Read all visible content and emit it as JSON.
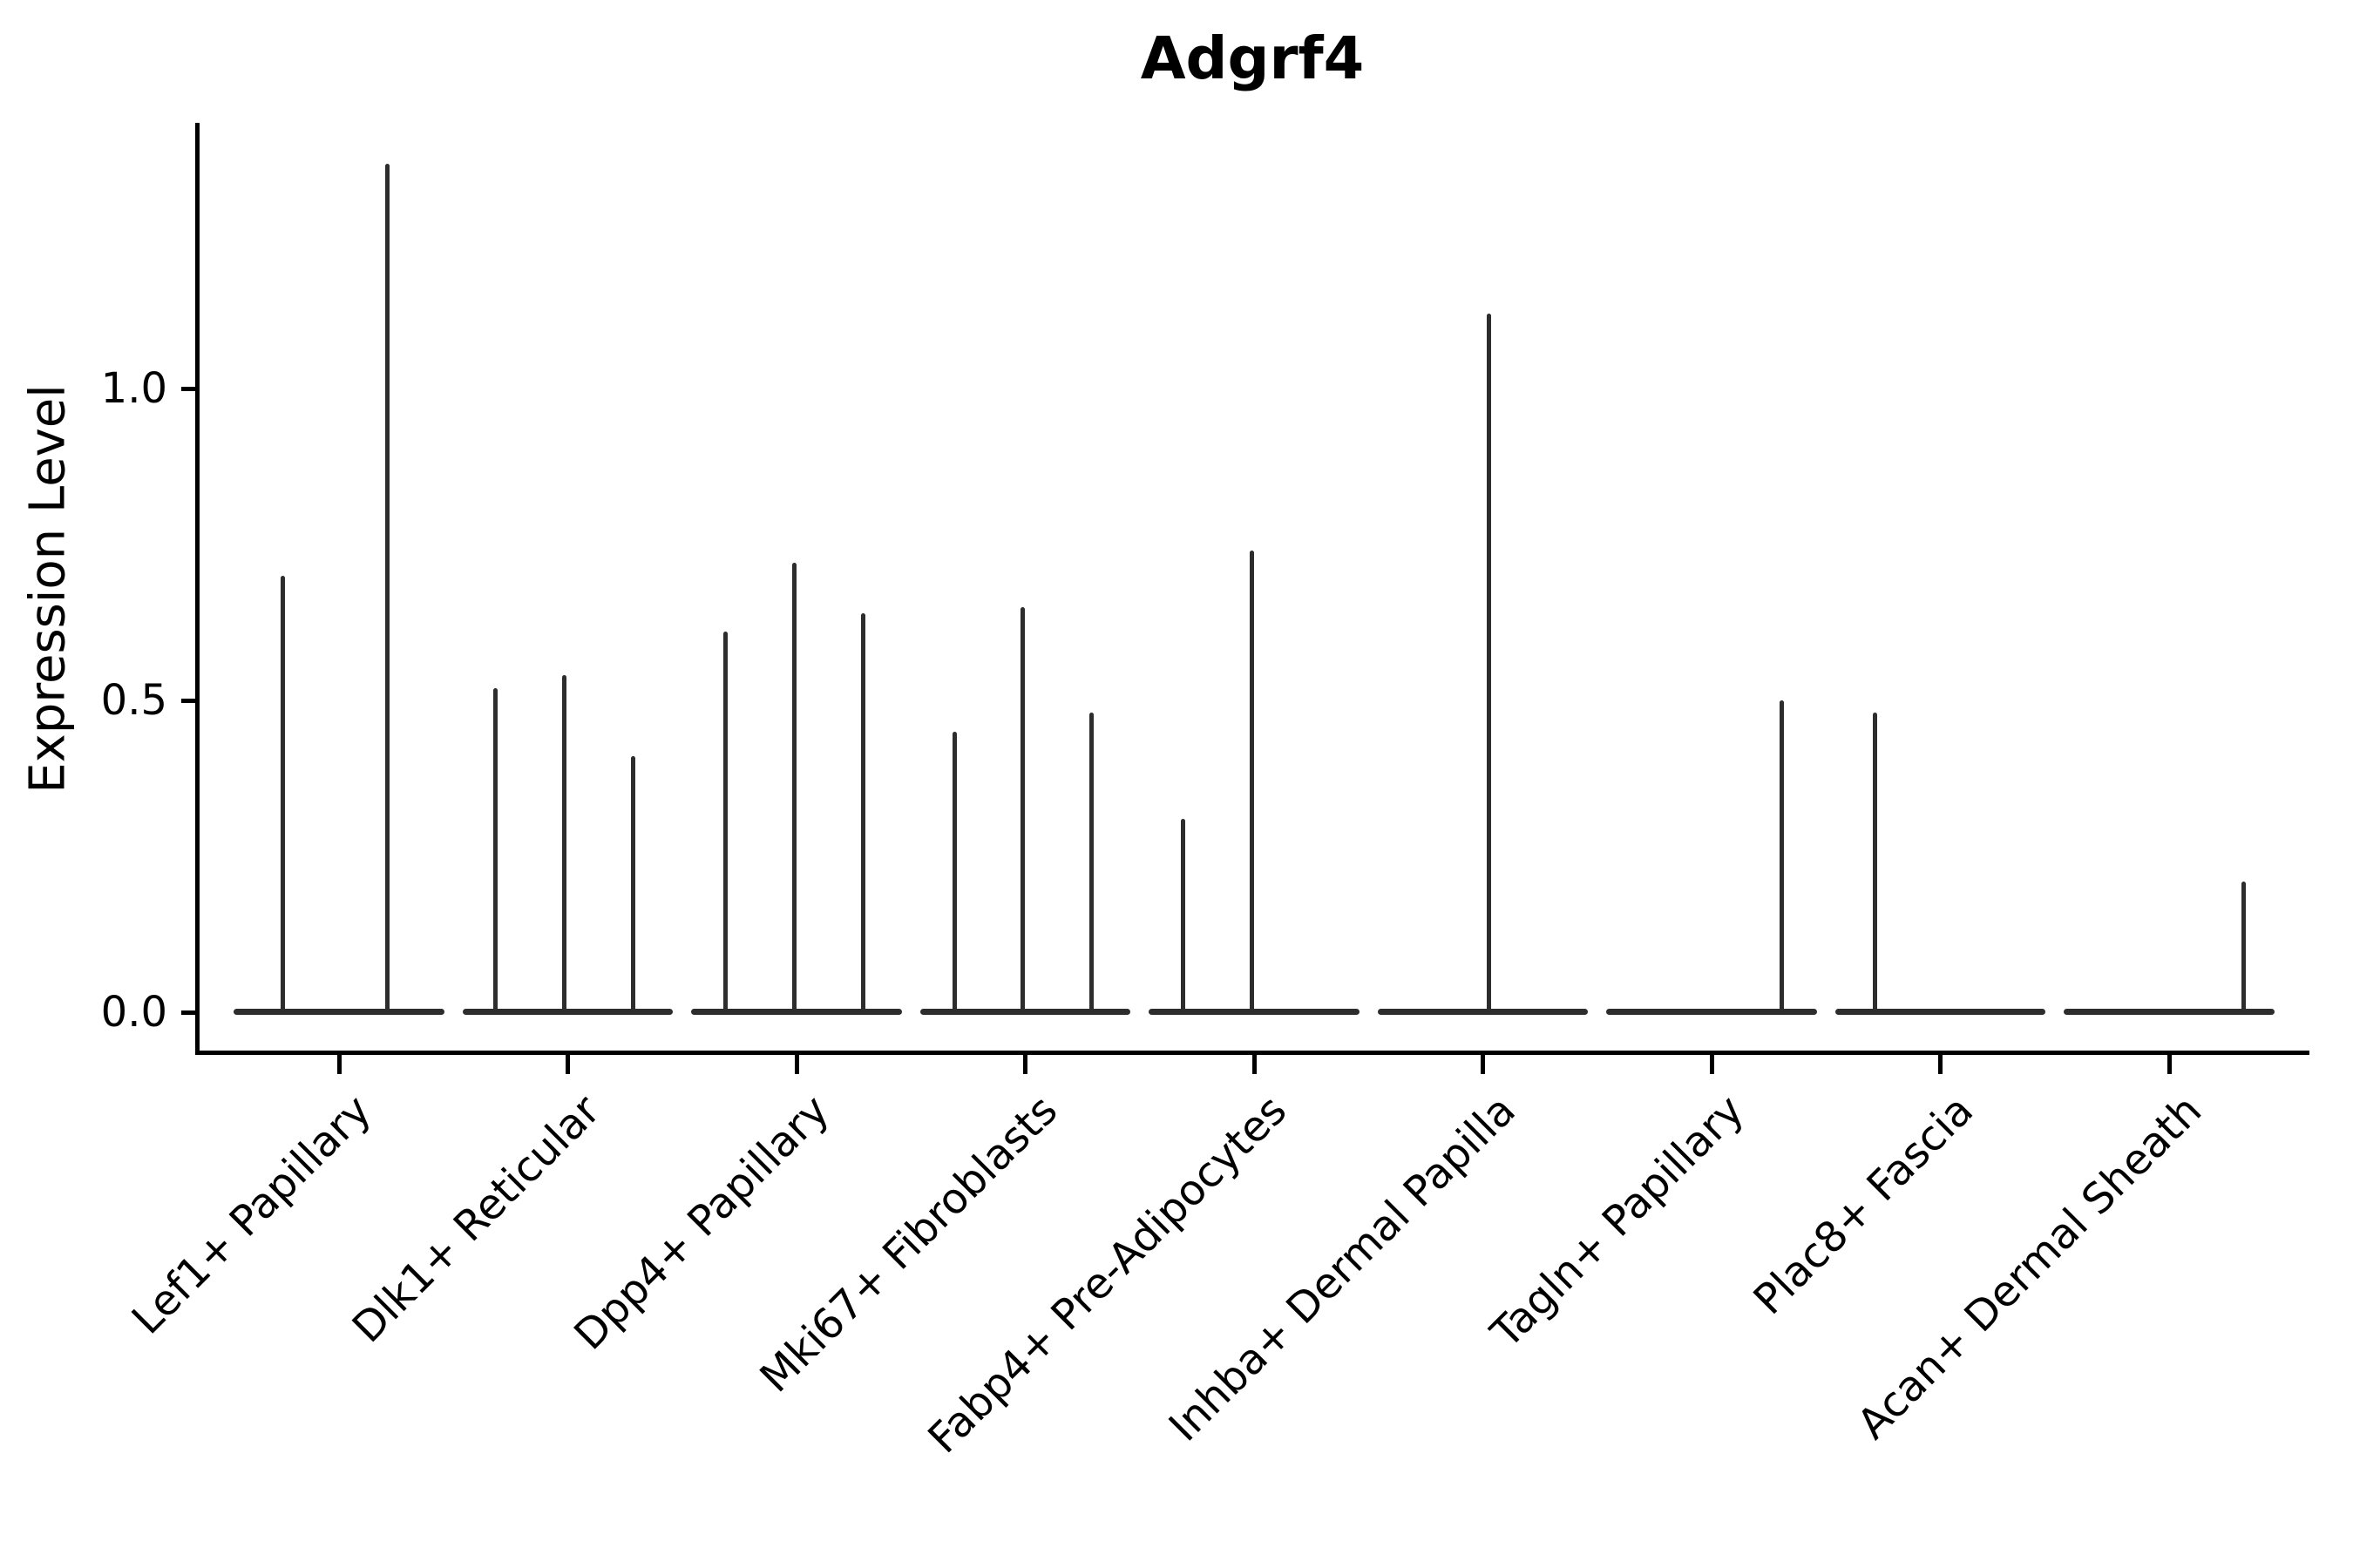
{
  "figure": {
    "title": "Adgrf4"
  },
  "chart_data": {
    "type": "violin",
    "title": "Adgrf4",
    "xlabel": "",
    "ylabel": "Expression Level",
    "yticks": [
      0.0,
      0.5,
      1.0
    ],
    "ytick_labels": [
      "0.0",
      "0.5",
      "1.0"
    ],
    "ylim": [
      -0.07,
      1.43
    ],
    "grid": false,
    "legend": null,
    "background_color": "#ffffff",
    "colors": {
      "violin": "#2d2d2d",
      "axis": "#000000",
      "text": "#000000"
    },
    "categories": [
      "Lef1+ Papillary",
      "Dlk1+ Reticular",
      "Dpp4+ Papillary",
      "Mki67+ Fibroblasts",
      "Fabp4+ Pre-Adipocytes",
      "Inhba+ Dermal Papilla",
      "Tagln+ Papillary",
      "Plac8+ Fascia",
      "Acan+ Dermal Sheath"
    ],
    "violins": [
      {
        "category": "Lef1+ Papillary",
        "base_value": 0.0,
        "base_width_frac": 0.92,
        "spikes": [
          {
            "offset_frac": -0.244,
            "value": 0.7
          },
          {
            "offset_frac": 0.213,
            "value": 1.36
          }
        ]
      },
      {
        "category": "Dlk1+ Reticular",
        "base_value": 0.0,
        "base_width_frac": 0.92,
        "spikes": [
          {
            "offset_frac": -0.318,
            "value": 0.52
          },
          {
            "offset_frac": -0.017,
            "value": 0.54
          },
          {
            "offset_frac": 0.284,
            "value": 0.41
          }
        ]
      },
      {
        "category": "Dpp4+ Papillary",
        "base_value": 0.0,
        "base_width_frac": 0.92,
        "spikes": [
          {
            "offset_frac": -0.312,
            "value": 0.61
          },
          {
            "offset_frac": -0.011,
            "value": 0.72
          },
          {
            "offset_frac": 0.29,
            "value": 0.64
          }
        ]
      },
      {
        "category": "Mki67+ Fibroblasts",
        "base_value": 0.0,
        "base_width_frac": 0.92,
        "spikes": [
          {
            "offset_frac": -0.31,
            "value": 0.45
          },
          {
            "offset_frac": -0.01,
            "value": 0.65
          },
          {
            "offset_frac": 0.291,
            "value": 0.48
          }
        ]
      },
      {
        "category": "Fabp4+ Pre-Adipocytes",
        "base_value": 0.0,
        "base_width_frac": 0.92,
        "spikes": [
          {
            "offset_frac": -0.309,
            "value": 0.31
          },
          {
            "offset_frac": -0.008,
            "value": 0.74
          }
        ]
      },
      {
        "category": "Inhba+ Dermal Papilla",
        "base_value": 0.0,
        "base_width_frac": 0.92,
        "spikes": [
          {
            "offset_frac": 0.025,
            "value": 1.12
          }
        ]
      },
      {
        "category": "Tagln+ Papillary",
        "base_value": 0.0,
        "base_width_frac": 0.92,
        "spikes": [
          {
            "offset_frac": 0.305,
            "value": 0.5
          }
        ]
      },
      {
        "category": "Plac8+ Fascia",
        "base_value": 0.0,
        "base_width_frac": 0.92,
        "spikes": [
          {
            "offset_frac": -0.284,
            "value": 0.48
          }
        ]
      },
      {
        "category": "Acan+ Dermal Sheath",
        "base_value": 0.0,
        "base_width_frac": 0.92,
        "spikes": [
          {
            "offset_frac": 0.324,
            "value": 0.21
          }
        ]
      }
    ]
  }
}
